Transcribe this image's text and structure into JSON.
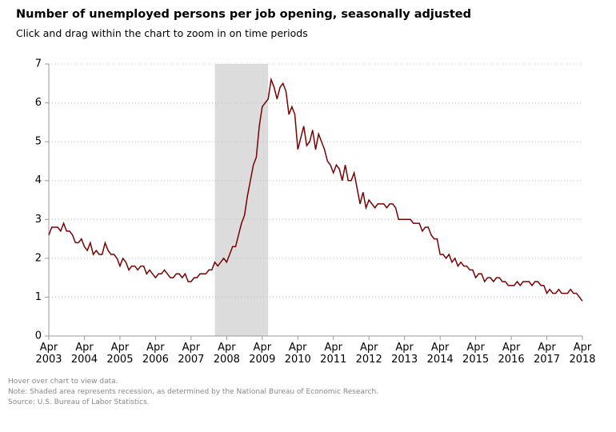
{
  "chart_data": {
    "type": "line",
    "title": "Number of unemployed persons per job opening, seasonally adjusted",
    "subtitle": "Click and drag within the chart to zoom in on time periods",
    "notes": [
      "Hover over chart to view data.",
      "Note: Shaded area represents recession, as determined by the National Bureau of Economic Research.",
      "Source: U.S. Bureau of Labor Statistics."
    ],
    "x": [
      "2003-04",
      "2003-05",
      "2003-06",
      "2003-07",
      "2003-08",
      "2003-09",
      "2003-10",
      "2003-11",
      "2003-12",
      "2004-01",
      "2004-02",
      "2004-03",
      "2004-04",
      "2004-05",
      "2004-06",
      "2004-07",
      "2004-08",
      "2004-09",
      "2004-10",
      "2004-11",
      "2004-12",
      "2005-01",
      "2005-02",
      "2005-03",
      "2005-04",
      "2005-05",
      "2005-06",
      "2005-07",
      "2005-08",
      "2005-09",
      "2005-10",
      "2005-11",
      "2005-12",
      "2006-01",
      "2006-02",
      "2006-03",
      "2006-04",
      "2006-05",
      "2006-06",
      "2006-07",
      "2006-08",
      "2006-09",
      "2006-10",
      "2006-11",
      "2006-12",
      "2007-01",
      "2007-02",
      "2007-03",
      "2007-04",
      "2007-05",
      "2007-06",
      "2007-07",
      "2007-08",
      "2007-09",
      "2007-10",
      "2007-11",
      "2007-12",
      "2008-01",
      "2008-02",
      "2008-03",
      "2008-04",
      "2008-05",
      "2008-06",
      "2008-07",
      "2008-08",
      "2008-09",
      "2008-10",
      "2008-11",
      "2008-12",
      "2009-01",
      "2009-02",
      "2009-03",
      "2009-04",
      "2009-05",
      "2009-06",
      "2009-07",
      "2009-08",
      "2009-09",
      "2009-10",
      "2009-11",
      "2009-12",
      "2010-01",
      "2010-02",
      "2010-03",
      "2010-04",
      "2010-05",
      "2010-06",
      "2010-07",
      "2010-08",
      "2010-09",
      "2010-10",
      "2010-11",
      "2010-12",
      "2011-01",
      "2011-02",
      "2011-03",
      "2011-04",
      "2011-05",
      "2011-06",
      "2011-07",
      "2011-08",
      "2011-09",
      "2011-10",
      "2011-11",
      "2011-12",
      "2012-01",
      "2012-02",
      "2012-03",
      "2012-04",
      "2012-05",
      "2012-06",
      "2012-07",
      "2012-08",
      "2012-09",
      "2012-10",
      "2012-11",
      "2012-12",
      "2013-01",
      "2013-02",
      "2013-03",
      "2013-04",
      "2013-05",
      "2013-06",
      "2013-07",
      "2013-08",
      "2013-09",
      "2013-10",
      "2013-11",
      "2013-12",
      "2014-01",
      "2014-02",
      "2014-03",
      "2014-04",
      "2014-05",
      "2014-06",
      "2014-07",
      "2014-08",
      "2014-09",
      "2014-10",
      "2014-11",
      "2014-12",
      "2015-01",
      "2015-02",
      "2015-03",
      "2015-04",
      "2015-05",
      "2015-06",
      "2015-07",
      "2015-08",
      "2015-09",
      "2015-10",
      "2015-11",
      "2015-12",
      "2016-01",
      "2016-02",
      "2016-03",
      "2016-04",
      "2016-05",
      "2016-06",
      "2016-07",
      "2016-08",
      "2016-09",
      "2016-10",
      "2016-11",
      "2016-12",
      "2017-01",
      "2017-02",
      "2017-03",
      "2017-04",
      "2017-05",
      "2017-06",
      "2017-07",
      "2017-08",
      "2017-09",
      "2017-10",
      "2017-11",
      "2017-12",
      "2018-01",
      "2018-02",
      "2018-03",
      "2018-04"
    ],
    "values": [
      2.6,
      2.8,
      2.8,
      2.8,
      2.7,
      2.9,
      2.7,
      2.7,
      2.6,
      2.4,
      2.4,
      2.5,
      2.3,
      2.2,
      2.4,
      2.1,
      2.2,
      2.1,
      2.1,
      2.4,
      2.2,
      2.1,
      2.1,
      2.0,
      1.8,
      2.0,
      1.9,
      1.7,
      1.8,
      1.8,
      1.7,
      1.8,
      1.8,
      1.6,
      1.7,
      1.6,
      1.5,
      1.6,
      1.6,
      1.7,
      1.6,
      1.5,
      1.5,
      1.6,
      1.6,
      1.5,
      1.6,
      1.4,
      1.4,
      1.5,
      1.5,
      1.6,
      1.6,
      1.6,
      1.7,
      1.7,
      1.9,
      1.8,
      1.9,
      2.0,
      1.9,
      2.1,
      2.3,
      2.3,
      2.6,
      2.9,
      3.1,
      3.6,
      4.0,
      4.4,
      4.6,
      5.4,
      5.9,
      6.0,
      6.1,
      6.6,
      6.4,
      6.1,
      6.4,
      6.5,
      6.3,
      5.7,
      5.9,
      5.7,
      4.8,
      5.1,
      5.4,
      4.9,
      5.0,
      5.3,
      4.8,
      5.2,
      5.0,
      4.8,
      4.5,
      4.4,
      4.2,
      4.4,
      4.3,
      4.0,
      4.4,
      4.0,
      4.0,
      4.2,
      3.8,
      3.4,
      3.7,
      3.3,
      3.5,
      3.4,
      3.3,
      3.4,
      3.4,
      3.4,
      3.3,
      3.4,
      3.4,
      3.3,
      3.0,
      3.0,
      3.0,
      3.0,
      3.0,
      2.9,
      2.9,
      2.9,
      2.7,
      2.8,
      2.8,
      2.6,
      2.5,
      2.5,
      2.1,
      2.1,
      2.0,
      2.1,
      1.9,
      2.0,
      1.8,
      1.9,
      1.8,
      1.8,
      1.7,
      1.7,
      1.5,
      1.6,
      1.6,
      1.4,
      1.5,
      1.5,
      1.4,
      1.5,
      1.5,
      1.4,
      1.4,
      1.3,
      1.3,
      1.3,
      1.4,
      1.3,
      1.4,
      1.4,
      1.4,
      1.3,
      1.4,
      1.4,
      1.3,
      1.3,
      1.1,
      1.2,
      1.1,
      1.1,
      1.2,
      1.1,
      1.1,
      1.1,
      1.2,
      1.1,
      1.1,
      1.0,
      0.9
    ],
    "color": "#7b0000",
    "recession": {
      "start": "2007-12",
      "end": "2009-06",
      "color": "#dcdcdc"
    },
    "xlim": [
      "2003-04",
      "2018-04"
    ],
    "xticks": [
      {
        "value": "2003-04",
        "label": "Apr 2003"
      },
      {
        "value": "2004-04",
        "label": "Apr 2004"
      },
      {
        "value": "2005-04",
        "label": "Apr 2005"
      },
      {
        "value": "2006-04",
        "label": "Apr 2006"
      },
      {
        "value": "2007-04",
        "label": "Apr 2007"
      },
      {
        "value": "2008-04",
        "label": "Apr 2008"
      },
      {
        "value": "2009-04",
        "label": "Apr 2009"
      },
      {
        "value": "2010-04",
        "label": "Apr 2010"
      },
      {
        "value": "2011-04",
        "label": "Apr 2011"
      },
      {
        "value": "2012-04",
        "label": "Apr 2012"
      },
      {
        "value": "2013-04",
        "label": "Apr 2013"
      },
      {
        "value": "2014-04",
        "label": "Apr 2014"
      },
      {
        "value": "2015-04",
        "label": "Apr 2015"
      },
      {
        "value": "2016-04",
        "label": "Apr 2016"
      },
      {
        "value": "2017-04",
        "label": "Apr 2017"
      },
      {
        "value": "2018-04",
        "label": "Apr 2018"
      }
    ],
    "ylim": [
      0,
      7
    ],
    "yticks": [
      0,
      1,
      2,
      3,
      4,
      5,
      6,
      7
    ],
    "grid": true
  }
}
